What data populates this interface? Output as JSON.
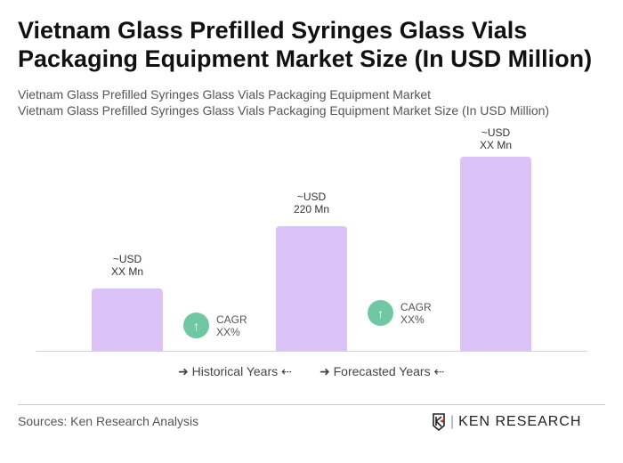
{
  "title": "Vietnam Glass Prefilled Syringes Glass Vials Packaging Equipment Market Size (In USD Million)",
  "subtitle1": "Vietnam Glass Prefilled Syringes Glass Vials Packaging Equipment Market",
  "subtitle2": "Vietnam Glass Prefilled Syringes Glass Vials Packaging Equipment Market Size (In USD Million)",
  "chart_data": {
    "type": "bar",
    "values": [
      null,
      220,
      null
    ],
    "labels": [
      {
        "l1": "~USD",
        "l2": "XX Mn"
      },
      {
        "l1": "~USD",
        "l2": "220 Mn"
      },
      {
        "l1": "~USD",
        "l2": "XX Mn"
      }
    ],
    "cagr": [
      {
        "l1": "CAGR",
        "l2": "XX%"
      },
      {
        "l1": "CAGR",
        "l2": "XX%"
      }
    ],
    "legend": [
      "Historical Years",
      "Forecasted Years"
    ],
    "bar_color": "#dcc3f7",
    "cagr_color": "#6fc7a4"
  },
  "source": "Sources: Ken Research Analysis",
  "logo": "KEN RESEARCH"
}
